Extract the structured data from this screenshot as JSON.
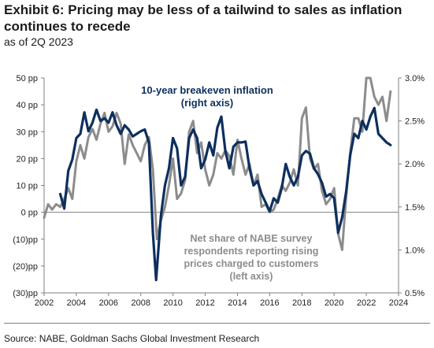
{
  "header": {
    "title": "Exhibit 6: Pricing may be less of a tailwind to sales as inflation continues to recede",
    "subtitle": "as of 2Q 2023"
  },
  "footer": {
    "source": "Source: NABE, Goldman Sachs Global Investment Research"
  },
  "colors": {
    "breakeven_line": "#0d2f5e",
    "nabe_line": "#8c8c8c"
  },
  "chart_data": {
    "type": "line",
    "x_range": [
      2002,
      2024
    ],
    "x_ticks": [
      "2002",
      "2004",
      "2006",
      "2008",
      "2010",
      "2012",
      "2014",
      "2016",
      "2018",
      "2020",
      "2022",
      "2024"
    ],
    "y_left": {
      "range": [
        -30,
        50
      ],
      "tick_values": [
        50,
        40,
        30,
        20,
        10,
        0,
        -10,
        -20,
        -30
      ],
      "tick_labels": [
        "50 pp",
        "40 pp",
        "30 pp",
        "20 pp",
        "10 pp",
        "0 pp",
        "(10)pp",
        "(20)pp",
        "(30)pp"
      ]
    },
    "y_right": {
      "range": [
        0.5,
        3.0
      ],
      "tick_values": [
        3.0,
        2.5,
        2.0,
        1.5,
        1.0,
        0.5
      ],
      "tick_labels": [
        "3.0%",
        "2.5%",
        "2.0%",
        "1.5%",
        "1.0%",
        "0.5%"
      ]
    },
    "grid": false,
    "legend": "none",
    "annotations": {
      "breakeven": [
        "10-year breakeven inflation",
        "(right axis)"
      ],
      "nabe": [
        "Net share of NABE survey",
        "respondents reporting rising",
        "prices charged to customers",
        "(left axis)"
      ]
    },
    "series": [
      {
        "axis": "right",
        "points": [
          [
            2003.0,
            1.65
          ],
          [
            2003.25,
            1.48
          ],
          [
            2003.5,
            1.92
          ],
          [
            2003.75,
            2.05
          ],
          [
            2004.0,
            2.3
          ],
          [
            2004.25,
            2.35
          ],
          [
            2004.5,
            2.6
          ],
          [
            2004.75,
            2.38
          ],
          [
            2005.0,
            2.48
          ],
          [
            2005.25,
            2.63
          ],
          [
            2005.5,
            2.5
          ],
          [
            2005.75,
            2.53
          ],
          [
            2006.0,
            2.48
          ],
          [
            2006.25,
            2.6
          ],
          [
            2006.5,
            2.45
          ],
          [
            2006.75,
            2.35
          ],
          [
            2007.0,
            2.45
          ],
          [
            2007.25,
            2.4
          ],
          [
            2007.5,
            2.32
          ],
          [
            2007.75,
            2.35
          ],
          [
            2008.0,
            2.38
          ],
          [
            2008.25,
            2.4
          ],
          [
            2008.5,
            2.25
          ],
          [
            2008.75,
            1.2
          ],
          [
            2008.95,
            0.65
          ],
          [
            2009.25,
            1.4
          ],
          [
            2009.5,
            1.75
          ],
          [
            2009.75,
            1.95
          ],
          [
            2010.0,
            2.3
          ],
          [
            2010.25,
            2.18
          ],
          [
            2010.5,
            1.75
          ],
          [
            2010.75,
            1.85
          ],
          [
            2011.0,
            2.3
          ],
          [
            2011.25,
            2.4
          ],
          [
            2011.5,
            2.3
          ],
          [
            2011.75,
            1.95
          ],
          [
            2012.0,
            2.05
          ],
          [
            2012.25,
            2.25
          ],
          [
            2012.5,
            2.1
          ],
          [
            2012.75,
            2.42
          ],
          [
            2013.0,
            2.55
          ],
          [
            2013.25,
            2.15
          ],
          [
            2013.5,
            1.95
          ],
          [
            2013.75,
            2.2
          ],
          [
            2014.0,
            2.25
          ],
          [
            2014.25,
            2.25
          ],
          [
            2014.5,
            2.26
          ],
          [
            2014.75,
            1.95
          ],
          [
            2015.0,
            1.75
          ],
          [
            2015.25,
            1.8
          ],
          [
            2015.5,
            1.65
          ],
          [
            2015.75,
            1.55
          ],
          [
            2016.0,
            1.45
          ],
          [
            2016.25,
            1.6
          ],
          [
            2016.5,
            1.55
          ],
          [
            2016.75,
            1.72
          ],
          [
            2017.0,
            2.0
          ],
          [
            2017.25,
            1.85
          ],
          [
            2017.5,
            1.75
          ],
          [
            2017.75,
            1.85
          ],
          [
            2018.0,
            2.1
          ],
          [
            2018.25,
            2.15
          ],
          [
            2018.5,
            2.12
          ],
          [
            2018.75,
            1.95
          ],
          [
            2019.0,
            1.88
          ],
          [
            2019.25,
            1.78
          ],
          [
            2019.5,
            1.62
          ],
          [
            2019.75,
            1.65
          ],
          [
            2020.0,
            1.6
          ],
          [
            2020.25,
            1.2
          ],
          [
            2020.5,
            1.38
          ],
          [
            2020.75,
            1.68
          ],
          [
            2021.0,
            2.1
          ],
          [
            2021.25,
            2.35
          ],
          [
            2021.5,
            2.3
          ],
          [
            2021.75,
            2.5
          ],
          [
            2022.0,
            2.4
          ],
          [
            2022.25,
            2.55
          ],
          [
            2022.5,
            2.65
          ],
          [
            2022.75,
            2.35
          ],
          [
            2023.0,
            2.3
          ],
          [
            2023.25,
            2.25
          ],
          [
            2023.5,
            2.22
          ]
        ]
      },
      {
        "axis": "left",
        "points": [
          [
            2002.0,
            -2
          ],
          [
            2002.25,
            3
          ],
          [
            2002.5,
            1
          ],
          [
            2002.75,
            3
          ],
          [
            2003.0,
            2
          ],
          [
            2003.25,
            5
          ],
          [
            2003.5,
            9
          ],
          [
            2003.75,
            5
          ],
          [
            2004.0,
            19
          ],
          [
            2004.25,
            25
          ],
          [
            2004.5,
            20
          ],
          [
            2004.75,
            28
          ],
          [
            2005.0,
            31
          ],
          [
            2005.25,
            27
          ],
          [
            2005.5,
            33
          ],
          [
            2005.75,
            37
          ],
          [
            2006.0,
            30
          ],
          [
            2006.25,
            32
          ],
          [
            2006.5,
            37
          ],
          [
            2006.75,
            33
          ],
          [
            2007.0,
            18
          ],
          [
            2007.25,
            29
          ],
          [
            2007.5,
            25
          ],
          [
            2007.75,
            22
          ],
          [
            2008.0,
            19
          ],
          [
            2008.25,
            25
          ],
          [
            2008.5,
            28
          ],
          [
            2008.75,
            16
          ],
          [
            2009.0,
            -10
          ],
          [
            2009.25,
            -3
          ],
          [
            2009.5,
            2
          ],
          [
            2009.75,
            10
          ],
          [
            2010.0,
            20
          ],
          [
            2010.25,
            5
          ],
          [
            2010.5,
            7
          ],
          [
            2010.75,
            12
          ],
          [
            2011.0,
            30
          ],
          [
            2011.25,
            34
          ],
          [
            2011.5,
            22
          ],
          [
            2011.75,
            26
          ],
          [
            2012.0,
            16
          ],
          [
            2012.25,
            10
          ],
          [
            2012.5,
            14
          ],
          [
            2012.75,
            22
          ],
          [
            2013.0,
            20
          ],
          [
            2013.25,
            23
          ],
          [
            2013.5,
            21
          ],
          [
            2013.75,
            14
          ],
          [
            2014.0,
            27
          ],
          [
            2014.25,
            20
          ],
          [
            2014.5,
            14
          ],
          [
            2014.75,
            18
          ],
          [
            2015.0,
            10
          ],
          [
            2015.25,
            14
          ],
          [
            2015.5,
            2
          ],
          [
            2015.75,
            3
          ],
          [
            2016.0,
            0
          ],
          [
            2016.25,
            1
          ],
          [
            2016.5,
            5
          ],
          [
            2016.75,
            10
          ],
          [
            2017.0,
            8
          ],
          [
            2017.25,
            11
          ],
          [
            2017.5,
            16
          ],
          [
            2017.75,
            10
          ],
          [
            2018.0,
            35
          ],
          [
            2018.25,
            39
          ],
          [
            2018.5,
            20
          ],
          [
            2018.75,
            16
          ],
          [
            2019.0,
            18
          ],
          [
            2019.25,
            8
          ],
          [
            2019.5,
            3
          ],
          [
            2019.75,
            5
          ],
          [
            2020.0,
            9
          ],
          [
            2020.25,
            -8
          ],
          [
            2020.5,
            -14
          ],
          [
            2020.75,
            6
          ],
          [
            2021.0,
            22
          ],
          [
            2021.25,
            35
          ],
          [
            2021.5,
            35
          ],
          [
            2021.75,
            30
          ],
          [
            2022.0,
            50
          ],
          [
            2022.25,
            50
          ],
          [
            2022.5,
            43
          ],
          [
            2022.75,
            40
          ],
          [
            2023.0,
            43
          ],
          [
            2023.25,
            34
          ],
          [
            2023.5,
            45
          ]
        ]
      }
    ]
  }
}
